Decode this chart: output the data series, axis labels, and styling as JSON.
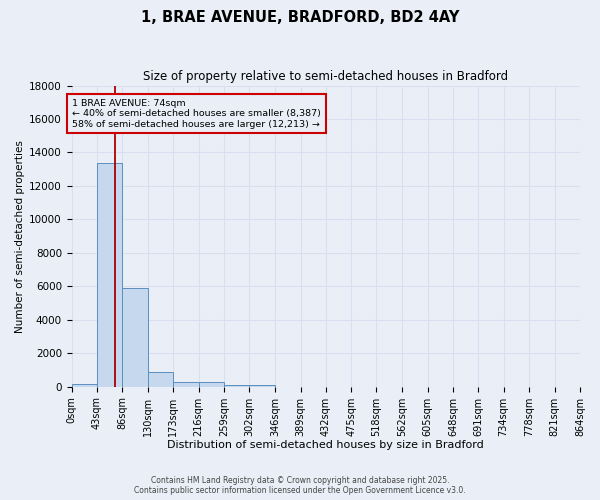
{
  "title": "1, BRAE AVENUE, BRADFORD, BD2 4AY",
  "subtitle": "Size of property relative to semi-detached houses in Bradford",
  "xlabel": "Distribution of semi-detached houses by size in Bradford",
  "ylabel": "Number of semi-detached properties",
  "footer_line1": "Contains HM Land Registry data © Crown copyright and database right 2025.",
  "footer_line2": "Contains public sector information licensed under the Open Government Licence v3.0.",
  "bin_edges": [
    0,
    43,
    86,
    130,
    173,
    216,
    259,
    302,
    346,
    389,
    432,
    475,
    518,
    562,
    605,
    648,
    691,
    734,
    778,
    821,
    864
  ],
  "bar_values": [
    190,
    13400,
    5900,
    870,
    290,
    290,
    120,
    110,
    0,
    0,
    0,
    0,
    0,
    0,
    0,
    0,
    0,
    0,
    0,
    0
  ],
  "bar_color": "#c5d8ed",
  "bar_edgecolor": "#5b8fbe",
  "background_color": "#eaeff7",
  "grid_color": "#d8dff0",
  "property_size": 74,
  "property_line_color": "#aa0000",
  "annotation_text_line1": "1 BRAE AVENUE: 74sqm",
  "annotation_text_line2": "← 40% of semi-detached houses are smaller (8,387)",
  "annotation_text_line3": "58% of semi-detached houses are larger (12,213) →",
  "annotation_box_edgecolor": "#cc0000",
  "annotation_box_facecolor": "#eaeff7",
  "ylim": [
    0,
    18000
  ],
  "yticks": [
    0,
    2000,
    4000,
    6000,
    8000,
    10000,
    12000,
    14000,
    16000,
    18000
  ],
  "title_fontsize": 10.5,
  "subtitle_fontsize": 8.5,
  "tick_fontsize": 7,
  "ylabel_fontsize": 7.5,
  "xlabel_fontsize": 8
}
